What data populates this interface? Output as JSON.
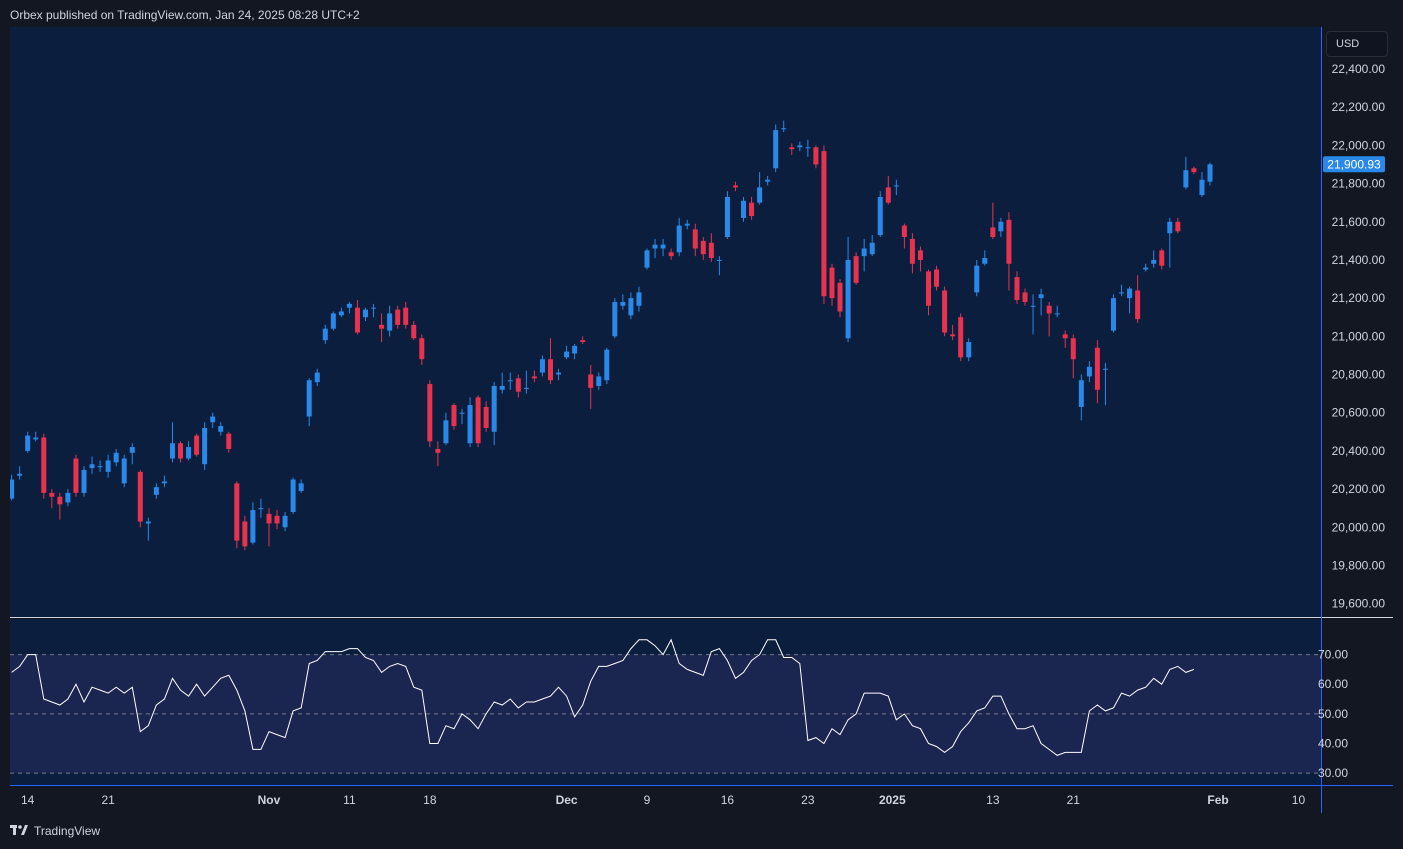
{
  "header": {
    "published": "Orbex published on TradingView.com, Jan 24, 2025 08:28 UTC+2"
  },
  "footer": {
    "brand": "TradingView"
  },
  "currency": "USD",
  "colors": {
    "background": "#0b1e3e",
    "up": "#2a89e8",
    "down": "#e8334f",
    "rsi_line": "#ffffff",
    "rsi_band": "#1a2550",
    "axis_text": "#d1d4dc",
    "price_badge": "#2a89e8"
  },
  "chart_data": [
    {
      "type": "candlestick",
      "title": "",
      "last_price_label": "21,900.93",
      "last_price": 21900.93,
      "y_axis_ticks": [
        "22,400.00",
        "22,200.00",
        "22,000.00",
        "21,800.00",
        "21,600.00",
        "21,400.00",
        "21,200.00",
        "21,000.00",
        "20,800.00",
        "20,600.00",
        "20,400.00",
        "20,200.00",
        "20,000.00",
        "19,800.00",
        "19,600.00"
      ],
      "y_axis_values": [
        22400,
        22200,
        22000,
        21800,
        21600,
        21400,
        21200,
        21000,
        20800,
        20600,
        20400,
        20200,
        20000,
        19800,
        19600
      ],
      "ylim": [
        19530,
        22620
      ],
      "x_axis_ticks": [
        "14",
        "21",
        "Nov",
        "11",
        "18",
        "Dec",
        "9",
        "16",
        "23",
        "2025",
        "13",
        "21",
        "Feb",
        "10"
      ],
      "x_axis_positions": [
        2,
        12,
        32,
        42,
        52,
        69,
        79,
        89,
        99,
        109.5,
        122,
        132,
        150,
        160
      ],
      "xlim": [
        -0.2,
        162.8
      ],
      "candles": [
        [
          0,
          20150,
          20250,
          20275,
          20140
        ],
        [
          1,
          20270,
          20280,
          20320,
          20250
        ],
        [
          2,
          20400,
          20480,
          20500,
          20390
        ],
        [
          3,
          20460,
          20470,
          20500,
          20450
        ],
        [
          4,
          20470,
          20180,
          20490,
          20150
        ],
        [
          5,
          20180,
          20160,
          20200,
          20100
        ],
        [
          6,
          20160,
          20120,
          20180,
          20040
        ],
        [
          7,
          20130,
          20180,
          20200,
          20110
        ],
        [
          8,
          20360,
          20180,
          20380,
          20160
        ],
        [
          9,
          20180,
          20300,
          20320,
          20160
        ],
        [
          10,
          20310,
          20330,
          20370,
          20280
        ],
        [
          11,
          20320,
          20320,
          20350,
          20290
        ],
        [
          12,
          20290,
          20350,
          20380,
          20260
        ],
        [
          13,
          20340,
          20390,
          20410,
          20320
        ],
        [
          14,
          20230,
          20360,
          20380,
          20210
        ],
        [
          15,
          20390,
          20420,
          20440,
          20330
        ],
        [
          16,
          20290,
          20030,
          20300,
          20000
        ],
        [
          17,
          20020,
          20030,
          20050,
          19930
        ],
        [
          18,
          20170,
          20210,
          20230,
          20150
        ],
        [
          19,
          20230,
          20240,
          20270,
          20210
        ],
        [
          20,
          20360,
          20440,
          20550,
          20340
        ],
        [
          21,
          20440,
          20360,
          20450,
          20340
        ],
        [
          22,
          20360,
          20420,
          20450,
          20350
        ],
        [
          23,
          20480,
          20380,
          20490,
          20370
        ],
        [
          24,
          20330,
          20520,
          20550,
          20300
        ],
        [
          25,
          20550,
          20580,
          20600,
          20520
        ],
        [
          26,
          20500,
          20530,
          20550,
          20480
        ],
        [
          27,
          20490,
          20410,
          20500,
          20390
        ],
        [
          28,
          20230,
          19930,
          20240,
          19890
        ],
        [
          29,
          20030,
          19900,
          20060,
          19880
        ],
        [
          30,
          19920,
          20090,
          20130,
          19910
        ],
        [
          31,
          20100,
          20100,
          20150,
          20050
        ],
        [
          32,
          20070,
          20020,
          20100,
          19900
        ],
        [
          33,
          20060,
          20020,
          20090,
          19990
        ],
        [
          34,
          20000,
          20060,
          20080,
          19980
        ],
        [
          35,
          20080,
          20250,
          20260,
          20070
        ],
        [
          36,
          20190,
          20230,
          20250,
          20180
        ],
        [
          37,
          20580,
          20770,
          20780,
          20530
        ],
        [
          38,
          20760,
          20810,
          20830,
          20740
        ],
        [
          39,
          20980,
          21040,
          21060,
          20960
        ],
        [
          40,
          21040,
          21120,
          21130,
          21030
        ],
        [
          41,
          21110,
          21130,
          21150,
          21100
        ],
        [
          42,
          21150,
          21170,
          21180,
          21120
        ],
        [
          43,
          21150,
          21020,
          21190,
          21010
        ],
        [
          44,
          21100,
          21140,
          21150,
          21080
        ],
        [
          45,
          21150,
          21150,
          21170,
          21100
        ],
        [
          46,
          21060,
          21040,
          21120,
          20970
        ],
        [
          47,
          21030,
          21120,
          21160,
          21000
        ],
        [
          48,
          21140,
          21060,
          21160,
          21040
        ],
        [
          49,
          21150,
          21060,
          21180,
          21040
        ],
        [
          50,
          21060,
          20990,
          21080,
          20980
        ],
        [
          51,
          20990,
          20880,
          21010,
          20850
        ],
        [
          52,
          20750,
          20450,
          20770,
          20420
        ],
        [
          53,
          20410,
          20390,
          20450,
          20320
        ],
        [
          54,
          20440,
          20560,
          20600,
          20430
        ],
        [
          55,
          20640,
          20530,
          20650,
          20510
        ],
        [
          56,
          20600,
          20600,
          20620,
          20540
        ],
        [
          57,
          20440,
          20640,
          20680,
          20420
        ],
        [
          58,
          20680,
          20440,
          20690,
          20420
        ],
        [
          59,
          20630,
          20520,
          20660,
          20500
        ],
        [
          60,
          20500,
          20740,
          20760,
          20430
        ],
        [
          61,
          20720,
          20740,
          20810,
          20700
        ],
        [
          62,
          20770,
          20770,
          20810,
          20720
        ],
        [
          63,
          20780,
          20710,
          20800,
          20680
        ],
        [
          64,
          20730,
          20730,
          20820,
          20700
        ],
        [
          65,
          20790,
          20780,
          20820,
          20760
        ],
        [
          66,
          20810,
          20880,
          20900,
          20790
        ],
        [
          67,
          20880,
          20770,
          20990,
          20750
        ],
        [
          68,
          20800,
          20810,
          20830,
          20770
        ],
        [
          69,
          20890,
          20920,
          20950,
          20880
        ],
        [
          70,
          20910,
          20950,
          20960,
          20880
        ],
        [
          71,
          20980,
          20970,
          21000,
          20960
        ],
        [
          72,
          20800,
          20730,
          20850,
          20620
        ],
        [
          73,
          20740,
          20790,
          20810,
          20720
        ],
        [
          74,
          20770,
          20930,
          20940,
          20750
        ],
        [
          75,
          21000,
          21180,
          21200,
          20990
        ],
        [
          76,
          21160,
          21180,
          21220,
          21140
        ],
        [
          77,
          21110,
          21200,
          21230,
          21090
        ],
        [
          78,
          21160,
          21230,
          21260,
          21130
        ],
        [
          79,
          21360,
          21450,
          21460,
          21350
        ],
        [
          80,
          21460,
          21480,
          21510,
          21410
        ],
        [
          81,
          21460,
          21480,
          21510,
          21420
        ],
        [
          82,
          21440,
          21420,
          21460,
          21400
        ],
        [
          83,
          21440,
          21580,
          21620,
          21420
        ],
        [
          84,
          21580,
          21590,
          21610,
          21560
        ],
        [
          85,
          21560,
          21460,
          21590,
          21420
        ],
        [
          86,
          21500,
          21430,
          21520,
          21400
        ],
        [
          87,
          21490,
          21410,
          21540,
          21390
        ],
        [
          88,
          21400,
          21400,
          21420,
          21320
        ],
        [
          89,
          21520,
          21730,
          21760,
          21510
        ],
        [
          90,
          21790,
          21780,
          21810,
          21760
        ],
        [
          91,
          21620,
          21710,
          21730,
          21600
        ],
        [
          92,
          21700,
          21630,
          21730,
          21610
        ],
        [
          93,
          21700,
          21780,
          21860,
          21690
        ],
        [
          94,
          21810,
          21820,
          21840,
          21790
        ],
        [
          95,
          21880,
          22080,
          22110,
          21860
        ],
        [
          96,
          22090,
          22090,
          22130,
          22070
        ],
        [
          97,
          21990,
          21980,
          22010,
          21950
        ],
        [
          98,
          21990,
          22000,
          22020,
          21970
        ],
        [
          99,
          21990,
          21990,
          22030,
          21940
        ],
        [
          100,
          21990,
          21900,
          22000,
          21880
        ],
        [
          101,
          21970,
          21210,
          22000,
          21170
        ],
        [
          102,
          21360,
          21200,
          21380,
          21160
        ],
        [
          103,
          21280,
          21130,
          21300,
          21100
        ],
        [
          104,
          20990,
          21400,
          21520,
          20970
        ],
        [
          105,
          21420,
          21280,
          21440,
          21270
        ],
        [
          106,
          21420,
          21460,
          21510,
          21340
        ],
        [
          107,
          21430,
          21490,
          21530,
          21420
        ],
        [
          108,
          21530,
          21730,
          21760,
          21520
        ],
        [
          109,
          21780,
          21700,
          21840,
          21690
        ],
        [
          110,
          21790,
          21790,
          21820,
          21740
        ],
        [
          111,
          21580,
          21520,
          21590,
          21460
        ],
        [
          112,
          21510,
          21380,
          21540,
          21330
        ],
        [
          113,
          21450,
          21400,
          21470,
          21340
        ],
        [
          114,
          21340,
          21160,
          21350,
          21110
        ],
        [
          115,
          21350,
          21260,
          21370,
          21240
        ],
        [
          116,
          21240,
          21020,
          21260,
          21000
        ],
        [
          117,
          21010,
          21000,
          21060,
          20980
        ],
        [
          118,
          21100,
          20890,
          21120,
          20870
        ],
        [
          119,
          20890,
          20970,
          20990,
          20870
        ],
        [
          120,
          21230,
          21370,
          21400,
          21210
        ],
        [
          121,
          21380,
          21410,
          21450,
          21370
        ],
        [
          122,
          21570,
          21520,
          21700,
          21510
        ],
        [
          123,
          21550,
          21600,
          21620,
          21520
        ],
        [
          124,
          21610,
          21380,
          21650,
          21240
        ],
        [
          125,
          21310,
          21190,
          21340,
          21170
        ],
        [
          126,
          21230,
          21180,
          21250,
          21160
        ],
        [
          127,
          21160,
          21160,
          21220,
          21010
        ],
        [
          128,
          21200,
          21220,
          21250,
          21110
        ],
        [
          129,
          21160,
          21120,
          21180,
          21000
        ],
        [
          130,
          21120,
          21120,
          21160,
          21100
        ],
        [
          131,
          21010,
          20990,
          21030,
          20940
        ],
        [
          132,
          20990,
          20880,
          21010,
          20780
        ],
        [
          133,
          20630,
          20770,
          20800,
          20560
        ],
        [
          134,
          20790,
          20840,
          20870,
          20760
        ],
        [
          135,
          20940,
          20720,
          20980,
          20650
        ],
        [
          136,
          20830,
          20830,
          20860,
          20640
        ],
        [
          137,
          21030,
          21200,
          21220,
          21020
        ],
        [
          138,
          21230,
          21230,
          21270,
          21210
        ],
        [
          139,
          21200,
          21250,
          21260,
          21120
        ],
        [
          140,
          21240,
          21090,
          21320,
          21070
        ],
        [
          141,
          21350,
          21360,
          21380,
          21340
        ],
        [
          142,
          21380,
          21400,
          21450,
          21360
        ],
        [
          143,
          21450,
          21370,
          21460,
          21350
        ],
        [
          144,
          21540,
          21600,
          21620,
          21360
        ],
        [
          145,
          21600,
          21550,
          21620,
          21540
        ],
        [
          146,
          21780,
          21870,
          21940,
          21770
        ],
        [
          147,
          21880,
          21860,
          21890,
          21850
        ],
        [
          148,
          21740,
          21820,
          21860,
          21730
        ],
        [
          149,
          21810,
          21900.93,
          21910,
          21790
        ]
      ]
    },
    {
      "type": "line",
      "title": "",
      "y_axis_ticks": [
        "70.00",
        "60.00",
        "50.00",
        "40.00",
        "30.00"
      ],
      "y_axis_values": [
        70,
        60,
        50,
        40,
        30
      ],
      "band": [
        30,
        70
      ],
      "midline": 50,
      "ylim": [
        26,
        82
      ],
      "values": [
        64,
        66,
        70,
        70,
        55,
        54,
        53,
        55,
        60,
        54,
        59,
        58,
        57,
        59,
        57,
        59,
        44,
        46,
        53,
        55,
        62,
        58,
        56,
        60,
        56,
        59,
        62,
        63,
        58,
        51,
        38,
        38,
        44,
        43,
        42,
        51,
        52,
        67,
        68,
        71,
        71,
        71,
        72,
        72,
        69,
        68,
        64,
        66,
        67,
        66,
        59,
        58,
        40,
        40,
        46,
        45,
        50,
        48,
        45,
        50,
        54,
        53,
        55,
        52,
        54,
        54,
        55,
        56,
        59,
        56,
        49,
        53,
        61,
        66,
        66,
        67,
        68,
        72,
        75,
        75,
        73,
        70,
        75,
        67,
        65,
        64,
        63,
        71,
        72,
        68,
        62,
        64,
        68,
        70,
        75,
        75,
        69,
        69,
        67,
        41,
        42,
        40,
        45,
        43,
        48,
        50,
        57,
        57,
        57,
        56,
        48,
        50,
        46,
        45,
        40,
        39,
        37,
        39,
        44,
        47,
        51,
        52,
        56,
        56,
        50,
        45,
        45,
        46,
        40,
        38,
        36,
        37,
        37,
        37,
        51,
        53,
        51,
        52,
        57,
        56,
        58,
        59,
        62,
        60,
        65,
        66,
        64,
        65
      ]
    }
  ]
}
